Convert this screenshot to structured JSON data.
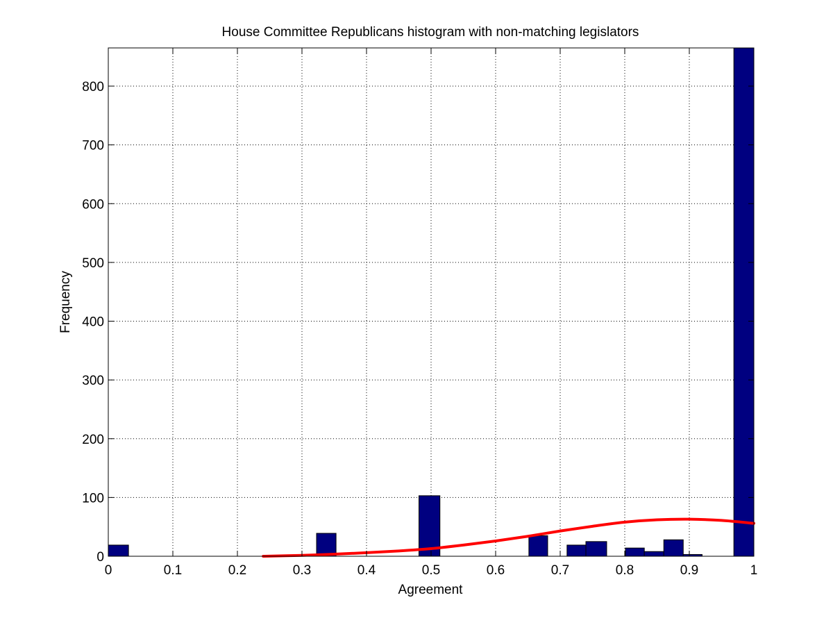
{
  "chart_data": {
    "type": "bar",
    "title": "House Committee Republicans histogram with non-matching legislators",
    "xlabel": "Agreement",
    "ylabel": "Frequency",
    "xlim": [
      0,
      1
    ],
    "ylim": [
      0,
      865
    ],
    "xticks": [
      0,
      0.1,
      0.2,
      0.3,
      0.4,
      0.5,
      0.6,
      0.7,
      0.8,
      0.9,
      1
    ],
    "xtick_labels": [
      "0",
      "0.1",
      "0.2",
      "0.3",
      "0.4",
      "0.5",
      "0.6",
      "0.7",
      "0.8",
      "0.9",
      "1"
    ],
    "yticks": [
      0,
      100,
      200,
      300,
      400,
      500,
      600,
      700,
      800
    ],
    "ytick_labels": [
      "0",
      "100",
      "200",
      "300",
      "400",
      "500",
      "600",
      "700",
      "800"
    ],
    "grid": true,
    "bar_color": "#000080",
    "curve_color": "#ff0000",
    "bins": [
      {
        "x0": 0.0,
        "x1": 0.0313,
        "value": 19
      },
      {
        "x0": 0.3226,
        "x1": 0.3528,
        "value": 39
      },
      {
        "x0": 0.4812,
        "x1": 0.5137,
        "value": 103
      },
      {
        "x0": 0.6515,
        "x1": 0.6806,
        "value": 35
      },
      {
        "x0": 0.7106,
        "x1": 0.7398,
        "value": 19
      },
      {
        "x0": 0.7398,
        "x1": 0.772,
        "value": 25
      },
      {
        "x0": 0.8011,
        "x1": 0.8303,
        "value": 14
      },
      {
        "x0": 0.8303,
        "x1": 0.8605,
        "value": 8
      },
      {
        "x0": 0.8605,
        "x1": 0.8906,
        "value": 28
      },
      {
        "x0": 0.8906,
        "x1": 0.9198,
        "value": 3
      },
      {
        "x0": 0.969,
        "x1": 1.0,
        "value": 865
      }
    ],
    "fit_curve": {
      "x": [
        0.24,
        0.3,
        0.35,
        0.4,
        0.45,
        0.5,
        0.55,
        0.6,
        0.65,
        0.7,
        0.75,
        0.8,
        0.85,
        0.9,
        0.95,
        1.0
      ],
      "y": [
        0,
        1.5,
        3.5,
        6,
        9,
        13,
        19,
        26,
        34,
        43,
        51,
        58,
        62,
        63,
        61,
        56
      ]
    }
  }
}
